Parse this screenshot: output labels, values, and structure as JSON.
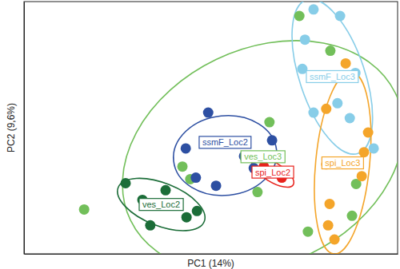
{
  "chart_data": {
    "type": "scatter",
    "x_label": "PC1 (14%)",
    "y_label": "PC2 (9,6%)",
    "xlim": [
      0,
      100
    ],
    "ylim": [
      0,
      100
    ],
    "xticks": [],
    "yticks": [],
    "tick_labels": false,
    "grid": false,
    "series": [
      {
        "name": "ves_Loc3",
        "color": "#72bf5a",
        "marker": "circle",
        "x": [
          73.7,
          82.0,
          16.1,
          42.4,
          44.5,
          62.5,
          65.7,
          88.9,
          76.0,
          87.8
        ],
        "values": [
          94.3,
          80.5,
          17.6,
          34.6,
          29.6,
          24.5,
          52.2,
          27.7,
          8.8,
          15.1
        ]
      },
      {
        "name": "ves_Loc2",
        "color": "#1b6d38",
        "marker": "circle",
        "x": [
          27.2,
          31.7,
          37.9,
          33.8,
          43.5,
          46.3
        ],
        "values": [
          28.0,
          21.4,
          25.2,
          11.3,
          14.5,
          17.0
        ]
      },
      {
        "name": "ssmF_Loc2",
        "color": "#2d4fa2",
        "marker": "circle",
        "x": [
          49.3,
          43.3,
          58.9,
          66.4,
          46.0,
          51.4,
          61.5
        ],
        "values": [
          56.0,
          41.8,
          38.7,
          45.0,
          30.2,
          27.0,
          34.0
        ]
      },
      {
        "name": "ssmF_Loc3",
        "color": "#87cde8",
        "marker": "circle",
        "x": [
          77.5,
          84.6,
          75.2,
          74.5,
          88.7,
          77.5,
          83.9,
          87.2,
          93.6
        ],
        "values": [
          96.9,
          94.3,
          84.9,
          73.3,
          71.7,
          56.0,
          59.7,
          53.8,
          41.8
        ]
      },
      {
        "name": "spi_Loc3",
        "color": "#f4a52a",
        "marker": "circle",
        "x": [
          86.1,
          80.9,
          92.1,
          91.0,
          80.9,
          81.8,
          81.4,
          83.1,
          90.4
        ],
        "values": [
          75.5,
          57.5,
          48.1,
          40.3,
          35.5,
          19.8,
          11.3,
          5.7,
          30.8
        ]
      },
      {
        "name": "spi_Loc2",
        "color": "#e8221c",
        "marker": "circle",
        "x": [
          64.2,
          69.0
        ],
        "values": [
          34.6,
          30.2
        ]
      }
    ]
  }
}
